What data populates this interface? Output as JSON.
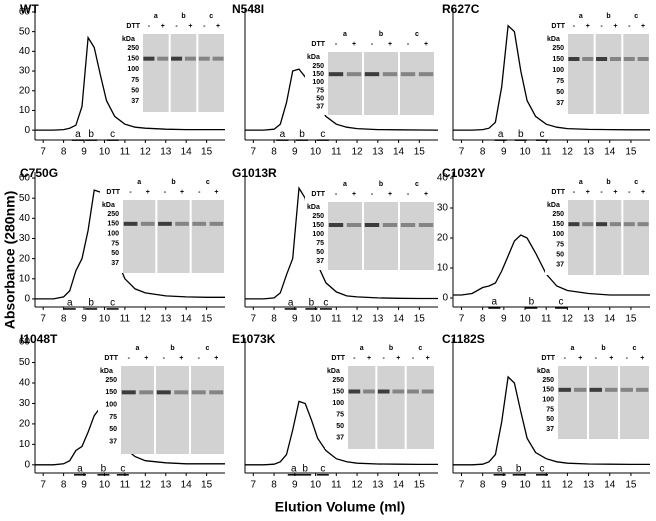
{
  "figure": {
    "xlabel": "Elution Volume (ml)",
    "ylabel": "Absorbance (280nm)"
  },
  "chart_data": [
    {
      "type": "line",
      "title": "WT",
      "color": "#000000",
      "xlim": [
        6.6,
        15.9
      ],
      "ylim": [
        -5,
        62
      ],
      "xticks": [
        7,
        8,
        9,
        10,
        11,
        12,
        13,
        14,
        15
      ],
      "yticks": [
        0,
        10,
        20,
        30,
        40,
        50,
        60
      ],
      "x": [
        6.6,
        7,
        7.5,
        8,
        8.3,
        8.6,
        8.9,
        9.2,
        9.5,
        9.8,
        10.1,
        10.5,
        11,
        11.5,
        12,
        13,
        14,
        15,
        15.9
      ],
      "values": [
        0,
        0,
        0,
        0.3,
        1,
        2.5,
        12,
        47,
        42,
        28,
        15,
        7,
        3,
        1.5,
        1,
        0.5,
        0.3,
        0.3,
        0.3
      ],
      "fractions": [
        {
          "label": "a",
          "x": 8.7
        },
        {
          "label": "b",
          "x": 9.35
        },
        {
          "label": "c",
          "x": 10.4
        }
      ],
      "inset": {
        "dtt": "DTT",
        "kda": "kDa",
        "signs": [
          "-",
          "+"
        ],
        "markers": [
          "250",
          "150",
          "100",
          "75",
          "50",
          "37"
        ]
      }
    },
    {
      "type": "line",
      "title": "N548I",
      "color": "#000000",
      "xlim": [
        6.6,
        15.9
      ],
      "ylim": [
        -5,
        62
      ],
      "xticks": [
        7,
        8,
        9,
        10,
        11,
        12,
        13,
        14,
        15
      ],
      "x": [
        6.6,
        7,
        7.5,
        8,
        8.3,
        8.6,
        8.9,
        9.2,
        9.5,
        9.8,
        10.1,
        10.5,
        11,
        11.5,
        12,
        13,
        14,
        15,
        15.9
      ],
      "values": [
        0,
        0,
        0,
        0.5,
        3,
        14,
        30,
        31,
        27,
        20,
        13,
        7,
        3,
        1.5,
        0.8,
        0.3,
        0.2,
        0.1,
        0
      ],
      "fractions": [
        {
          "label": "a",
          "x": 8.4
        },
        {
          "label": "b",
          "x": 9.35
        },
        {
          "label": "c",
          "x": 10.35
        }
      ],
      "inset": {
        "dtt": "DTT",
        "kda": "kDa",
        "signs": [
          "-",
          "+"
        ],
        "markers": [
          "250",
          "150",
          "100",
          "75",
          "50",
          "37"
        ]
      }
    },
    {
      "type": "line",
      "title": "R627C",
      "color": "#000000",
      "xlim": [
        6.6,
        15.9
      ],
      "ylim": [
        -5,
        62
      ],
      "xticks": [
        7,
        8,
        9,
        10,
        11,
        12,
        13,
        14,
        15
      ],
      "x": [
        6.6,
        7,
        7.5,
        8,
        8.3,
        8.6,
        8.9,
        9.2,
        9.5,
        9.8,
        10.1,
        10.5,
        11,
        11.5,
        12,
        13,
        14,
        15,
        15.9
      ],
      "values": [
        0,
        0,
        0,
        0.3,
        1,
        4,
        22,
        53,
        50,
        30,
        15,
        7,
        3,
        1.5,
        0.8,
        0.4,
        0.3,
        0.2,
        0.2
      ],
      "fractions": [
        {
          "label": "a",
          "x": 8.85
        },
        {
          "label": "b",
          "x": 9.8
        },
        {
          "label": "c",
          "x": 10.8
        }
      ],
      "inset": {
        "dtt": "DTT",
        "kda": "kDa",
        "signs": [
          "-",
          "+"
        ],
        "markers": [
          "250",
          "150",
          "100",
          "75",
          "50",
          "37"
        ]
      }
    },
    {
      "type": "line",
      "title": "C750G",
      "color": "#000000",
      "xlim": [
        6.6,
        15.9
      ],
      "ylim": [
        -4,
        63
      ],
      "xticks": [
        7,
        8,
        9,
        10,
        11,
        12,
        13,
        14,
        15
      ],
      "yticks": [
        0,
        10,
        20,
        30,
        40,
        50,
        60
      ],
      "x": [
        6.6,
        7,
        7.5,
        8,
        8.3,
        8.6,
        8.9,
        9.2,
        9.5,
        9.8,
        10.1,
        10.5,
        11,
        11.5,
        12,
        13,
        14,
        15,
        15.9
      ],
      "values": [
        0,
        0,
        0,
        1,
        4,
        14,
        20,
        34,
        54,
        53,
        38,
        22,
        10,
        5,
        3,
        1.5,
        1,
        0.8,
        0.8
      ],
      "fractions": [
        {
          "label": "a",
          "x": 8.3
        },
        {
          "label": "b",
          "x": 9.35
        },
        {
          "label": "c",
          "x": 10.4
        }
      ],
      "inset": {
        "dtt": "DTT",
        "kda": "kDa",
        "signs": [
          "-",
          "+"
        ],
        "markers": [
          "250",
          "150",
          "100",
          "75",
          "50",
          "37"
        ]
      }
    },
    {
      "type": "line",
      "title": "G1013R",
      "color": "#000000",
      "xlim": [
        6.6,
        15.9
      ],
      "ylim": [
        -4,
        63
      ],
      "xticks": [
        7,
        8,
        9,
        10,
        11,
        12,
        13,
        14,
        15
      ],
      "x": [
        6.6,
        7,
        7.5,
        8,
        8.3,
        8.6,
        8.9,
        9.2,
        9.5,
        9.8,
        10.1,
        10.5,
        11,
        11.5,
        12,
        13,
        14,
        15,
        15.9
      ],
      "values": [
        0,
        0,
        0,
        0.5,
        3,
        12,
        20,
        55,
        50,
        30,
        17,
        8,
        3.5,
        1.5,
        1,
        0.5,
        0.3,
        0.2,
        0.2
      ],
      "fractions": [
        {
          "label": "a",
          "x": 8.8
        },
        {
          "label": "b",
          "x": 9.8
        },
        {
          "label": "c",
          "x": 10.5
        }
      ],
      "inset": {
        "dtt": "DTT",
        "kda": "kDa",
        "signs": [
          "-",
          "+"
        ],
        "markers": [
          "250",
          "150",
          "100",
          "75",
          "50",
          "37"
        ]
      }
    },
    {
      "type": "line",
      "title": "C1032Y",
      "color": "#000000",
      "xlim": [
        6.6,
        15.9
      ],
      "ylim": [
        -3,
        42
      ],
      "xticks": [
        7,
        8,
        9,
        10,
        11,
        12,
        13,
        14,
        15
      ],
      "yticks": [
        0,
        10,
        20,
        30,
        40
      ],
      "x": [
        6.6,
        7,
        7.5,
        8,
        8.3,
        8.6,
        8.9,
        9.2,
        9.5,
        9.8,
        10.1,
        10.5,
        11,
        11.5,
        12,
        13,
        14,
        15,
        15.9
      ],
      "values": [
        1,
        1,
        1.5,
        3.5,
        4,
        5,
        9,
        14,
        19,
        21,
        20,
        15,
        8,
        4,
        2.5,
        1.5,
        1,
        1,
        1
      ],
      "fractions": [
        {
          "label": "a",
          "x": 8.55
        },
        {
          "label": "b",
          "x": 10.3
        },
        {
          "label": "c",
          "x": 11.7
        }
      ],
      "inset": {
        "dtt": "DTT",
        "kda": "kDa",
        "signs": [
          "-",
          "+"
        ],
        "markers": [
          "250",
          "150",
          "100",
          "75",
          "50",
          "37"
        ]
      }
    },
    {
      "type": "line",
      "title": "I1048T",
      "color": "#000000",
      "xlim": [
        6.6,
        15.9
      ],
      "ylim": [
        -4,
        62
      ],
      "xticks": [
        7,
        8,
        9,
        10,
        11,
        12,
        13,
        14,
        15
      ],
      "yticks": [
        0,
        10,
        20,
        30,
        40,
        50,
        60
      ],
      "x": [
        6.6,
        7,
        7.5,
        8,
        8.3,
        8.6,
        8.9,
        9.2,
        9.5,
        9.8,
        10.1,
        10.5,
        11,
        11.5,
        12,
        13,
        14,
        15,
        15.9
      ],
      "values": [
        0,
        0,
        0,
        0.5,
        2,
        7,
        9,
        16,
        24,
        28,
        25,
        16,
        8,
        4,
        2,
        1,
        0.5,
        0.5,
        0.5
      ],
      "fractions": [
        {
          "label": "a",
          "x": 8.8
        },
        {
          "label": "b",
          "x": 9.95
        },
        {
          "label": "c",
          "x": 10.9
        }
      ],
      "inset": {
        "dtt": "DTT",
        "kda": "kDa",
        "signs": [
          "-",
          "+"
        ],
        "markers": [
          "250",
          "150",
          "100",
          "75",
          "50",
          "37"
        ]
      }
    },
    {
      "type": "line",
      "title": "E1073K",
      "color": "#000000",
      "xlim": [
        6.6,
        15.9
      ],
      "ylim": [
        -4,
        62
      ],
      "xticks": [
        7,
        8,
        9,
        10,
        11,
        12,
        13,
        14,
        15
      ],
      "x": [
        6.6,
        7,
        7.5,
        8,
        8.3,
        8.6,
        8.9,
        9.2,
        9.5,
        9.8,
        10.1,
        10.5,
        11,
        11.5,
        12,
        13,
        14,
        15,
        15.9
      ],
      "values": [
        0,
        0,
        0,
        0.3,
        1.5,
        5,
        17,
        31,
        30,
        22,
        13,
        7,
        3,
        1.5,
        0.8,
        0.4,
        0.3,
        0.2,
        0.2
      ],
      "fractions": [
        {
          "label": "a",
          "x": 8.95
        },
        {
          "label": "b",
          "x": 9.5
        },
        {
          "label": "c",
          "x": 10.35
        }
      ],
      "inset": {
        "dtt": "DTT",
        "kda": "kDa",
        "signs": [
          "-",
          "+"
        ],
        "markers": [
          "250",
          "150",
          "100",
          "75",
          "50",
          "37"
        ]
      }
    },
    {
      "type": "line",
      "title": "C1182S",
      "color": "#000000",
      "xlim": [
        6.6,
        15.9
      ],
      "ylim": [
        -4,
        62
      ],
      "xticks": [
        7,
        8,
        9,
        10,
        11,
        12,
        13,
        14,
        15
      ],
      "x": [
        6.6,
        7,
        7.5,
        8,
        8.3,
        8.6,
        8.9,
        9.2,
        9.5,
        9.8,
        10.1,
        10.5,
        11,
        11.5,
        12,
        13,
        14,
        15,
        15.9
      ],
      "values": [
        0,
        0,
        0,
        0.3,
        1.5,
        5,
        21,
        43,
        40,
        26,
        13,
        6,
        3,
        1.5,
        0.8,
        0.4,
        0.3,
        0.2,
        0.2
      ],
      "fractions": [
        {
          "label": "a",
          "x": 8.8
        },
        {
          "label": "b",
          "x": 9.7
        },
        {
          "label": "c",
          "x": 10.8
        }
      ],
      "inset": {
        "dtt": "DTT",
        "kda": "kDa",
        "signs": [
          "-",
          "+"
        ],
        "markers": [
          "250",
          "150",
          "100",
          "75",
          "50",
          "37"
        ]
      }
    }
  ]
}
